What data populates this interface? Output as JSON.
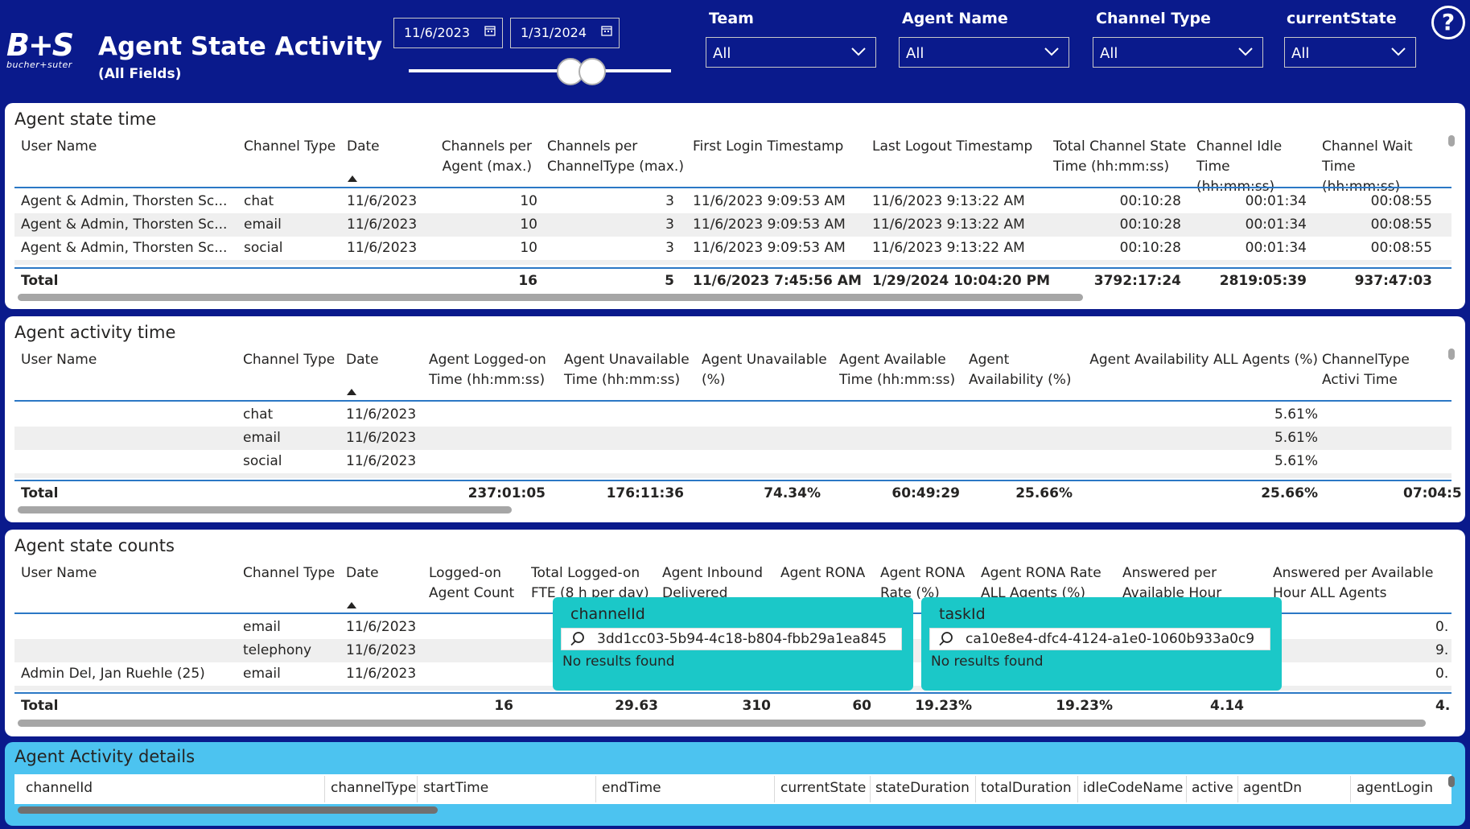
{
  "header": {
    "logo_mark": "B+S",
    "logo_sub": "bucher+suter",
    "title": "Agent State Activity",
    "subtitle": "(All Fields)",
    "date_start": "11/6/2023",
    "date_end": "1/31/2024",
    "filters": [
      {
        "label": "Team",
        "value": "All"
      },
      {
        "label": "Agent Name",
        "value": "All"
      },
      {
        "label": "Channel Type",
        "value": "All"
      },
      {
        "label": "currentState",
        "value": "All"
      }
    ],
    "help": "?"
  },
  "state_time": {
    "title": "Agent state time",
    "columns": [
      "User Name",
      "Channel Type",
      "Date",
      "Channels per Agent (max.)",
      "Channels per ChannelType (max.)",
      "First Login Timestamp",
      "Last Logout Timestamp",
      "Total Channel State Time (hh:mm:ss)",
      "Channel Idle Time (hh:mm:ss)",
      "Channel Wait Time (hh:mm:ss)"
    ],
    "rows": [
      [
        "Agent & Admin, Thorsten Sc...",
        "chat",
        "11/6/2023",
        "10",
        "3",
        "11/6/2023 9:09:53 AM",
        "11/6/2023 9:13:22 AM",
        "00:10:28",
        "00:01:34",
        "00:08:55"
      ],
      [
        "Agent & Admin, Thorsten Sc...",
        "email",
        "11/6/2023",
        "10",
        "3",
        "11/6/2023 9:09:53 AM",
        "11/6/2023 9:13:22 AM",
        "00:10:28",
        "00:01:34",
        "00:08:55"
      ],
      [
        "Agent & Admin, Thorsten Sc...",
        "social",
        "11/6/2023",
        "10",
        "3",
        "11/6/2023 9:09:53 AM",
        "11/6/2023 9:13:22 AM",
        "00:10:28",
        "00:01:34",
        "00:08:55"
      ]
    ],
    "total": [
      "Total",
      "",
      "",
      "16",
      "5",
      "11/6/2023 7:45:56 AM",
      "1/29/2024 10:04:20 PM",
      "3792:17:24",
      "2819:05:39",
      "937:47:03"
    ]
  },
  "activity_time": {
    "title": "Agent activity time",
    "columns": [
      "User Name",
      "Channel Type",
      "Date",
      "Agent Logged-on Time (hh:mm:ss)",
      "Agent Unavailable Time (hh:mm:ss)",
      "Agent Unavailable (%)",
      "Agent Available Time (hh:mm:ss)",
      "Agent Availability (%)",
      "Agent Availability ALL Agents (%)",
      "ChannelType Activi Time (hh:mm:ss)"
    ],
    "rows": [
      [
        "",
        "chat",
        "11/6/2023",
        "",
        "",
        "",
        "",
        "",
        "5.61%",
        ""
      ],
      [
        "",
        "email",
        "11/6/2023",
        "",
        "",
        "",
        "",
        "",
        "5.61%",
        ""
      ],
      [
        "",
        "social",
        "11/6/2023",
        "",
        "",
        "",
        "",
        "",
        "5.61%",
        ""
      ]
    ],
    "total": [
      "Total",
      "",
      "",
      "237:01:05",
      "176:11:36",
      "74.34%",
      "60:49:29",
      "25.66%",
      "25.66%",
      "07:04:5"
    ]
  },
  "state_counts": {
    "title": "Agent state counts",
    "columns": [
      "User Name",
      "Channel Type",
      "Date",
      "Logged-on Agent Count",
      "Total Logged-on FTE (8 h per day)",
      "Agent Inbound Delivered",
      "Agent RONA",
      "Agent RONA Rate (%)",
      "Agent RONA Rate ALL Agents (%)",
      "Answered per Available Hour",
      "Answered per Available Hour ALL Agents"
    ],
    "rows": [
      [
        "",
        "email",
        "11/6/2023",
        "",
        "",
        "",
        "",
        "",
        "",
        "",
        "0."
      ],
      [
        "",
        "telephony",
        "11/6/2023",
        "",
        "",
        "",
        "",
        "",
        "",
        "",
        "9."
      ],
      [
        "Admin Del, Jan Ruehle (25)",
        "email",
        "11/6/2023",
        "",
        "",
        "",
        "",
        "",
        "",
        "",
        "0."
      ]
    ],
    "total": [
      "Total",
      "",
      "",
      "16",
      "29.63",
      "310",
      "60",
      "19.23%",
      "19.23%",
      "4.14",
      "4."
    ]
  },
  "popups": [
    {
      "title": "channelId",
      "value": "3dd1cc03-5b94-4c18-b804-fbb29a1ea845",
      "message": "No results found"
    },
    {
      "title": "taskId",
      "value": "ca10e8e4-dfc4-4124-a1e0-1060b933a0c9",
      "message": "No results found"
    }
  ],
  "details": {
    "title": "Agent Activity details",
    "columns": [
      "channelId",
      "channelType",
      "startTime",
      "endTime",
      "currentState",
      "stateDuration",
      "totalDuration",
      "idleCodeName",
      "active",
      "agentDn",
      "agentLogin"
    ]
  },
  "colors": {
    "header_bg": "#0a1a8c",
    "accent_line": "#2b78c5",
    "popup_bg": "#1bc8c8",
    "details_bg": "#4cc3f0"
  }
}
